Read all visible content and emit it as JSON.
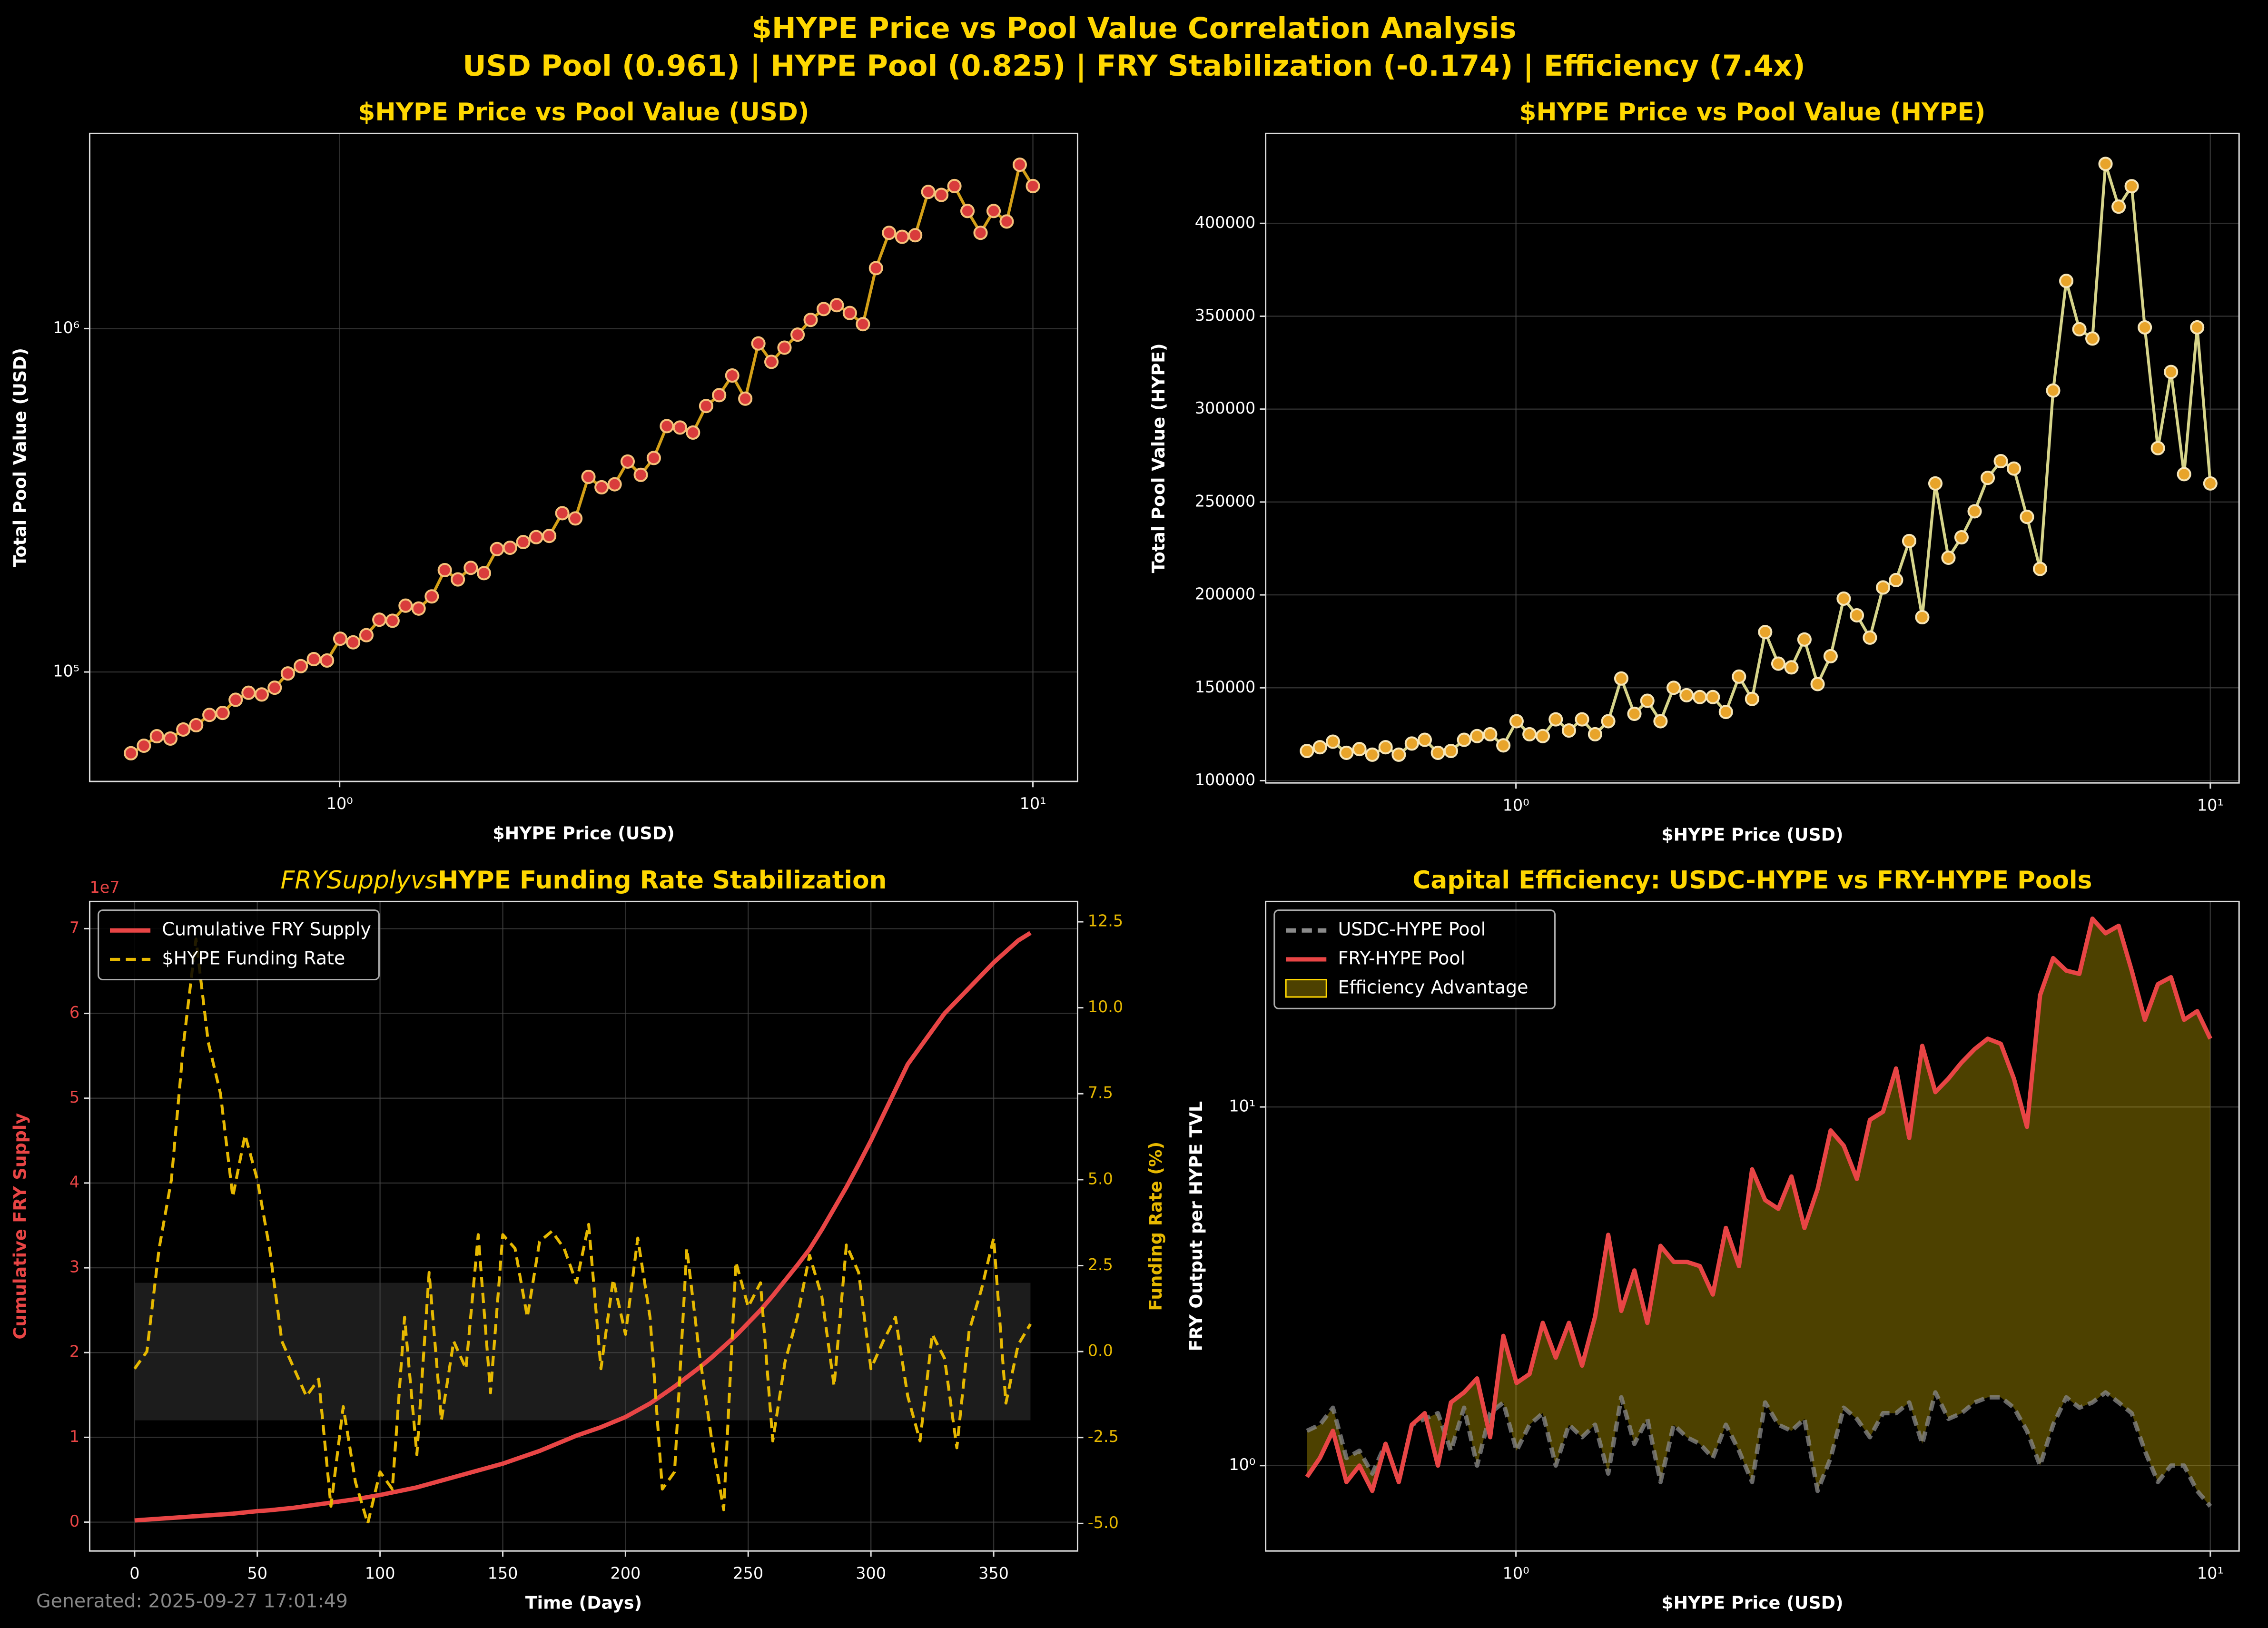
{
  "title": "$HYPE Price vs Pool Value Correlation Analysis",
  "subtitle": "USD Pool (0.961) | HYPE Pool (0.825) | FRY Stabilization (-0.174) | Efficiency (7.4x)",
  "footer": "Generated: 2025-09-27 17:01:49",
  "chart_data": [
    {
      "type": "line",
      "title": "$HYPE Price vs Pool Value (USD)",
      "xlabel": "$HYPE Price (USD)",
      "ylabel": "Total Pool Value (USD)",
      "xscale": "log",
      "yscale": "log",
      "grid": true,
      "xlim": [
        0.436,
        11.6
      ],
      "ylim": [
        48000,
        3700000
      ],
      "xticks": [
        {
          "value": 1,
          "label": "10⁰"
        },
        {
          "value": 10,
          "label": "10¹"
        }
      ],
      "yticks": [
        {
          "value": 100000,
          "label": "10⁵"
        },
        {
          "value": 1000000,
          "label": "10⁶"
        }
      ],
      "x": [
        0.5,
        0.522,
        0.545,
        0.57,
        0.595,
        0.621,
        0.649,
        0.678,
        0.708,
        0.739,
        0.772,
        0.806,
        0.842,
        0.879,
        0.918,
        0.959,
        1.002,
        1.046,
        1.093,
        1.141,
        1.192,
        1.245,
        1.3,
        1.358,
        1.418,
        1.481,
        1.546,
        1.615,
        1.687,
        1.761,
        1.84,
        1.921,
        2.006,
        2.095,
        2.188,
        2.285,
        2.387,
        2.493,
        2.603,
        2.719,
        2.839,
        2.965,
        3.097,
        3.234,
        3.378,
        3.527,
        3.684,
        3.847,
        4.018,
        4.196,
        4.382,
        4.577,
        4.78,
        4.992,
        5.213,
        5.444,
        5.686,
        5.938,
        6.202,
        6.477,
        6.764,
        7.064,
        7.378,
        7.705,
        8.047,
        8.404,
        8.777,
        9.166,
        9.573,
        10
      ],
      "series": [
        {
          "color": "#d4a017",
          "marker_color": "#d93c3c",
          "marker_edge": "#f5c27a",
          "values": [
            58000,
            61000,
            65000,
            64000,
            68000,
            70000,
            75000,
            76000,
            83000,
            87000,
            86000,
            90000,
            99000,
            104000,
            109000,
            108000,
            125000,
            122000,
            128000,
            142000,
            141000,
            156000,
            153000,
            166000,
            198000,
            186000,
            201000,
            194000,
            228000,
            230000,
            239000,
            247000,
            249000,
            290000,
            280000,
            370000,
            345000,
            352000,
            410000,
            375000,
            420000,
            520000,
            515000,
            498000,
            595000,
            640000,
            730000,
            625000,
            905000,
            800000,
            880000,
            960000,
            1060000,
            1140000,
            1170000,
            1110000,
            1030000,
            1500000,
            1900000,
            1850000,
            1870000,
            2500000,
            2450000,
            2600000,
            2200000,
            1900000,
            2200000,
            2050000,
            3000000,
            2600000
          ]
        }
      ]
    },
    {
      "type": "line",
      "title": "$HYPE Price vs Pool Value (HYPE)",
      "xlabel": "$HYPE Price (USD)",
      "ylabel": "Total Pool Value (HYPE)",
      "xscale": "log",
      "grid": true,
      "xlim": [
        0.436,
        11.0
      ],
      "ylim": [
        98800,
        448400
      ],
      "xticks": [
        {
          "value": 1,
          "label": "10⁰"
        },
        {
          "value": 10,
          "label": "10¹"
        }
      ],
      "yticks": [
        100000,
        150000,
        200000,
        250000,
        300000,
        350000,
        400000
      ],
      "x": [
        0.5,
        0.522,
        0.545,
        0.57,
        0.595,
        0.621,
        0.649,
        0.678,
        0.708,
        0.739,
        0.772,
        0.806,
        0.842,
        0.879,
        0.918,
        0.959,
        1.002,
        1.046,
        1.093,
        1.141,
        1.192,
        1.245,
        1.3,
        1.358,
        1.418,
        1.481,
        1.546,
        1.615,
        1.687,
        1.761,
        1.84,
        1.921,
        2.006,
        2.095,
        2.188,
        2.285,
        2.387,
        2.493,
        2.603,
        2.719,
        2.839,
        2.965,
        3.097,
        3.234,
        3.378,
        3.527,
        3.684,
        3.847,
        4.018,
        4.196,
        4.382,
        4.577,
        4.78,
        4.992,
        5.213,
        5.444,
        5.686,
        5.938,
        6.202,
        6.477,
        6.764,
        7.064,
        7.378,
        7.705,
        8.047,
        8.404,
        8.777,
        9.166,
        9.573,
        10
      ],
      "series": [
        {
          "color": "#d6d48a",
          "marker_color": "#e8a42a",
          "marker_edge": "#f6e6b8",
          "values": [
            116000,
            118000,
            121000,
            115000,
            117000,
            114000,
            118000,
            114000,
            120000,
            122000,
            115000,
            116000,
            122000,
            124000,
            125000,
            119000,
            132000,
            125000,
            124000,
            133000,
            127000,
            133000,
            125000,
            132000,
            155000,
            136000,
            143000,
            132000,
            150000,
            146000,
            145000,
            145000,
            137000,
            156000,
            144000,
            180000,
            163000,
            161000,
            176000,
            152000,
            167000,
            198000,
            189000,
            177000,
            204000,
            208000,
            229000,
            188000,
            260000,
            220000,
            231000,
            245000,
            263000,
            272000,
            268000,
            242000,
            214000,
            310000,
            369000,
            343000,
            338000,
            432000,
            409000,
            420000,
            344000,
            279000,
            320000,
            265000,
            344000,
            260000
          ]
        }
      ]
    },
    {
      "type": "line",
      "title_math": "FRYSupplyvs",
      "title": "HYPE Funding Rate Stabilization",
      "xlabel": "Time (Days)",
      "ylabel": "Cumulative FRY Supply",
      "y2label": "Funding Rate (%)",
      "y_offset_label": "1e7",
      "ylabel_color": "#e84545",
      "y2label_color": "#e6b800",
      "grid": true,
      "legend": "upper left",
      "xlim": [
        -18.3,
        384.2
      ],
      "ylim": [
        -3400000,
        73200000
      ],
      "y2lim": [
        -5.8,
        13.09
      ],
      "xticks": [
        0,
        50,
        100,
        150,
        200,
        250,
        300,
        350
      ],
      "yticks": [
        0,
        {
          "value": 10000000,
          "label": "1"
        },
        {
          "value": 20000000,
          "label": "2"
        },
        {
          "value": 30000000,
          "label": "3"
        },
        {
          "value": 40000000,
          "label": "4"
        },
        {
          "value": 50000000,
          "label": "5"
        },
        {
          "value": 60000000,
          "label": "6"
        },
        {
          "value": 70000000,
          "label": "7"
        }
      ],
      "y2ticks": [
        {
          "value": -5,
          "label": "-5.0"
        },
        -2.5,
        {
          "value": 0,
          "label": "0.0"
        },
        2.5,
        {
          "value": 5,
          "label": "5.0"
        },
        7.5,
        {
          "value": 10,
          "label": "10.0"
        },
        12.5
      ],
      "stability_band": [
        -2,
        2
      ],
      "x": [
        0,
        5,
        10,
        15,
        20,
        25,
        30,
        35,
        40,
        45,
        50,
        55,
        60,
        65,
        70,
        75,
        80,
        85,
        90,
        95,
        100,
        105,
        110,
        115,
        120,
        125,
        130,
        135,
        140,
        145,
        150,
        155,
        160,
        165,
        170,
        175,
        180,
        185,
        190,
        195,
        200,
        205,
        210,
        215,
        220,
        225,
        230,
        235,
        240,
        245,
        250,
        255,
        260,
        265,
        270,
        275,
        280,
        285,
        290,
        295,
        300,
        305,
        310,
        315,
        320,
        325,
        330,
        335,
        340,
        345,
        350,
        355,
        360,
        365
      ],
      "series": [
        {
          "name": "Cumulative FRY Supply",
          "color": "#e84545",
          "width": 3,
          "values": [
            200000,
            300000,
            400000,
            500000,
            600000,
            700000,
            800000,
            900000,
            1000000,
            1150000,
            1300000,
            1400000,
            1550000,
            1700000,
            1900000,
            2100000,
            2300000,
            2500000,
            2700000,
            2950000,
            3200000,
            3500000,
            3800000,
            4100000,
            4500000,
            4900000,
            5300000,
            5700000,
            6100000,
            6500000,
            6900000,
            7400000,
            7900000,
            8400000,
            9000000,
            9600000,
            10200000,
            10700000,
            11200000,
            11800000,
            12400000,
            13200000,
            14000000,
            15000000,
            16000000,
            17100000,
            18200000,
            19400000,
            20700000,
            22000000,
            23500000,
            25000000,
            26700000,
            28500000,
            30300000,
            32200000,
            34500000,
            37000000,
            39500000,
            42200000,
            45000000,
            48000000,
            51000000,
            54000000,
            56000000,
            58000000,
            60000000,
            61500000,
            63000000,
            64500000,
            66000000,
            67300000,
            68600000,
            69500000
          ]
        },
        {
          "name": "$HYPE Funding Rate",
          "color": "#e6b800",
          "width": 2,
          "dash": true,
          "axis": "y2",
          "values": [
            -0.5,
            0,
            3,
            5,
            9,
            12,
            9,
            7.5,
            4.5,
            6.3,
            5,
            3,
            0.3,
            -0.5,
            -1.3,
            -0.8,
            -4.5,
            -1.6,
            -3.8,
            -5,
            -3.5,
            -4,
            1,
            -3,
            2.3,
            -2,
            0.3,
            -0.5,
            3.4,
            -1.2,
            3.4,
            3,
            1,
            3.2,
            3.5,
            3,
            2,
            3.7,
            -0.5,
            2.1,
            0.5,
            3.3,
            1,
            -4,
            -3.5,
            3,
            0,
            -2.5,
            -4.6,
            2.6,
            1.3,
            2,
            -2.6,
            -0.3,
            1,
            2.8,
            1.6,
            -1,
            3.1,
            2.3,
            -0.5,
            0.3,
            1,
            -1.3,
            -2.6,
            0.5,
            -0.2,
            -2.8,
            0.6,
            1.8,
            3.3,
            -1.5,
            0.2,
            0.8
          ]
        }
      ]
    },
    {
      "type": "line",
      "title": "Capital Efficiency: USDC-HYPE vs FRY-HYPE Pools",
      "xlabel": "$HYPE Price (USD)",
      "ylabel": "FRY Output per HYPE TVL",
      "xscale": "log",
      "yscale": "log",
      "grid": true,
      "legend": "upper left",
      "xlim": [
        0.436,
        11.0
      ],
      "ylim": [
        0.578,
        37.4
      ],
      "xticks": [
        {
          "value": 1,
          "label": "10⁰"
        },
        {
          "value": 10,
          "label": "10¹"
        }
      ],
      "yticks": [
        {
          "value": 1,
          "label": "10⁰"
        },
        {
          "value": 10,
          "label": "10¹"
        }
      ],
      "fill_between": {
        "name": "Efficiency Advantage",
        "color": "#ffd700",
        "opacity": 0.3
      },
      "x": [
        0.5,
        0.522,
        0.545,
        0.57,
        0.595,
        0.621,
        0.649,
        0.678,
        0.708,
        0.739,
        0.772,
        0.806,
        0.842,
        0.879,
        0.918,
        0.959,
        1.002,
        1.046,
        1.093,
        1.141,
        1.192,
        1.245,
        1.3,
        1.358,
        1.418,
        1.481,
        1.546,
        1.615,
        1.687,
        1.761,
        1.84,
        1.921,
        2.006,
        2.095,
        2.188,
        2.285,
        2.387,
        2.493,
        2.603,
        2.719,
        2.839,
        2.965,
        3.097,
        3.234,
        3.378,
        3.527,
        3.684,
        3.847,
        4.018,
        4.196,
        4.382,
        4.577,
        4.78,
        4.992,
        5.213,
        5.444,
        5.686,
        5.938,
        6.202,
        6.477,
        6.764,
        7.064,
        7.378,
        7.705,
        8.047,
        8.404,
        8.777,
        9.166,
        9.573,
        10
      ],
      "series": [
        {
          "name": "USDC-HYPE Pool",
          "color": "#8a8a8a",
          "width": 3,
          "dash": true,
          "values": [
            1.25,
            1.3,
            1.45,
            1.05,
            1.1,
            0.95,
            1.15,
            0.9,
            1.3,
            1.35,
            1.4,
            1.1,
            1.45,
            1.0,
            1.4,
            1.5,
            1.1,
            1.3,
            1.4,
            1.0,
            1.3,
            1.2,
            1.3,
            0.95,
            1.55,
            1.15,
            1.35,
            0.9,
            1.3,
            1.2,
            1.15,
            1.05,
            1.3,
            1.1,
            0.9,
            1.5,
            1.3,
            1.25,
            1.35,
            0.85,
            1.05,
            1.45,
            1.35,
            1.2,
            1.4,
            1.4,
            1.5,
            1.15,
            1.6,
            1.35,
            1.4,
            1.5,
            1.55,
            1.55,
            1.45,
            1.25,
            1.0,
            1.3,
            1.55,
            1.45,
            1.5,
            1.6,
            1.5,
            1.4,
            1.1,
            0.9,
            1.0,
            1.0,
            0.85,
            0.77
          ]
        },
        {
          "name": "FRY-HYPE Pool",
          "color": "#e84545",
          "width": 3,
          "values": [
            0.93,
            1.05,
            1.25,
            0.9,
            1.0,
            0.85,
            1.15,
            0.9,
            1.3,
            1.4,
            1.0,
            1.5,
            1.6,
            1.75,
            1.2,
            2.3,
            1.7,
            1.8,
            2.5,
            2.0,
            2.5,
            1.9,
            2.6,
            4.4,
            2.7,
            3.5,
            2.5,
            4.1,
            3.7,
            3.7,
            3.6,
            3.0,
            4.6,
            3.6,
            6.7,
            5.5,
            5.2,
            6.4,
            4.6,
            5.9,
            8.6,
            7.8,
            6.3,
            9.2,
            9.7,
            12.8,
            8.2,
            14.8,
            11.0,
            12.0,
            13.3,
            14.5,
            15.5,
            15.0,
            12.0,
            8.8,
            20.5,
            26.0,
            24.0,
            23.5,
            33.5,
            30.5,
            32.0,
            24.0,
            17.5,
            22.0,
            23.0,
            17.5,
            18.5,
            15.5
          ]
        }
      ]
    }
  ]
}
